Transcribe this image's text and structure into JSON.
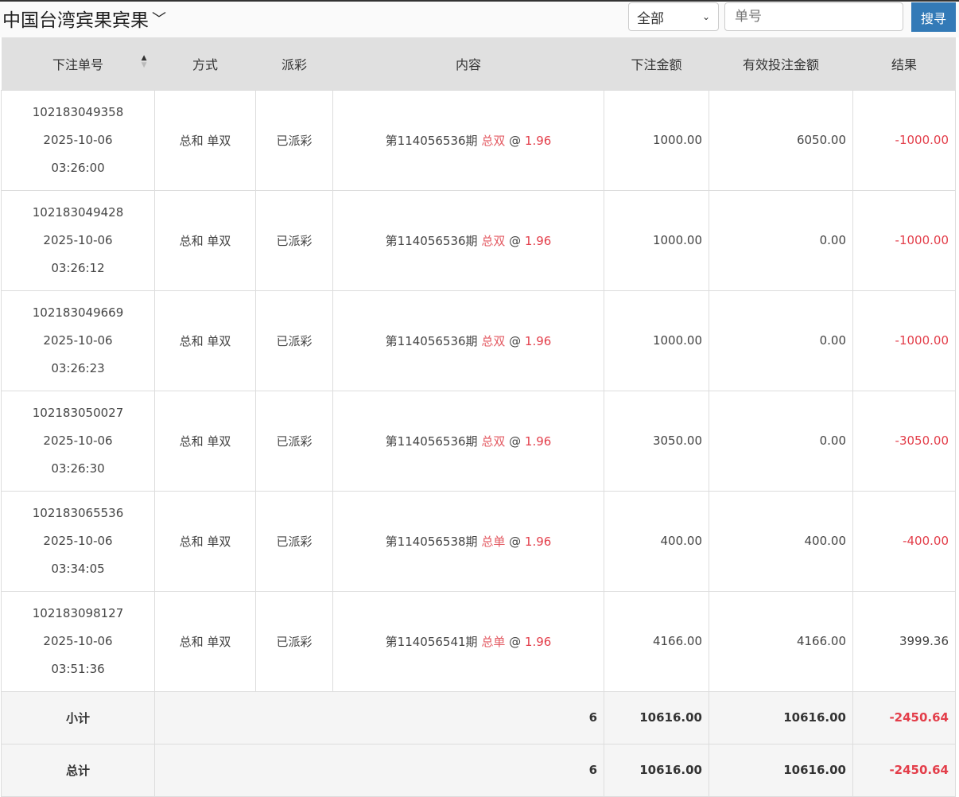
{
  "header": {
    "title": "中国台湾宾果宾果",
    "filter_value": "全部",
    "search_placeholder": "单号",
    "search_button": "搜寻"
  },
  "columns": [
    "下注单号",
    "方式",
    "派彩",
    "内容",
    "下注金额",
    "有效投注金额",
    "结果"
  ],
  "rows": [
    {
      "id": "102183049358",
      "date": "2025-10-06",
      "time": "03:26:00",
      "method": "总和 单双",
      "status": "已派彩",
      "period": "第114056536期",
      "pick": "总双",
      "at": "@",
      "odds": "1.96",
      "amount": "1000.00",
      "valid": "6050.00",
      "result": "-1000.00",
      "neg": true
    },
    {
      "id": "102183049428",
      "date": "2025-10-06",
      "time": "03:26:12",
      "method": "总和 单双",
      "status": "已派彩",
      "period": "第114056536期",
      "pick": "总双",
      "at": "@",
      "odds": "1.96",
      "amount": "1000.00",
      "valid": "0.00",
      "result": "-1000.00",
      "neg": true
    },
    {
      "id": "102183049669",
      "date": "2025-10-06",
      "time": "03:26:23",
      "method": "总和 单双",
      "status": "已派彩",
      "period": "第114056536期",
      "pick": "总双",
      "at": "@",
      "odds": "1.96",
      "amount": "1000.00",
      "valid": "0.00",
      "result": "-1000.00",
      "neg": true
    },
    {
      "id": "102183050027",
      "date": "2025-10-06",
      "time": "03:26:30",
      "method": "总和 单双",
      "status": "已派彩",
      "period": "第114056536期",
      "pick": "总双",
      "at": "@",
      "odds": "1.96",
      "amount": "3050.00",
      "valid": "0.00",
      "result": "-3050.00",
      "neg": true
    },
    {
      "id": "102183065536",
      "date": "2025-10-06",
      "time": "03:34:05",
      "method": "总和 单双",
      "status": "已派彩",
      "period": "第114056538期",
      "pick": "总单",
      "at": "@",
      "odds": "1.96",
      "amount": "400.00",
      "valid": "400.00",
      "result": "-400.00",
      "neg": true
    },
    {
      "id": "102183098127",
      "date": "2025-10-06",
      "time": "03:51:36",
      "method": "总和 单双",
      "status": "已派彩",
      "period": "第114056541期",
      "pick": "总单",
      "at": "@",
      "odds": "1.96",
      "amount": "4166.00",
      "valid": "4166.00",
      "result": "3999.36",
      "neg": false
    }
  ],
  "subtotal": {
    "label": "小计",
    "count": "6",
    "amount": "10616.00",
    "valid": "10616.00",
    "result": "-2450.64"
  },
  "total": {
    "label": "总计",
    "count": "6",
    "amount": "10616.00",
    "valid": "10616.00",
    "result": "-2450.64"
  }
}
